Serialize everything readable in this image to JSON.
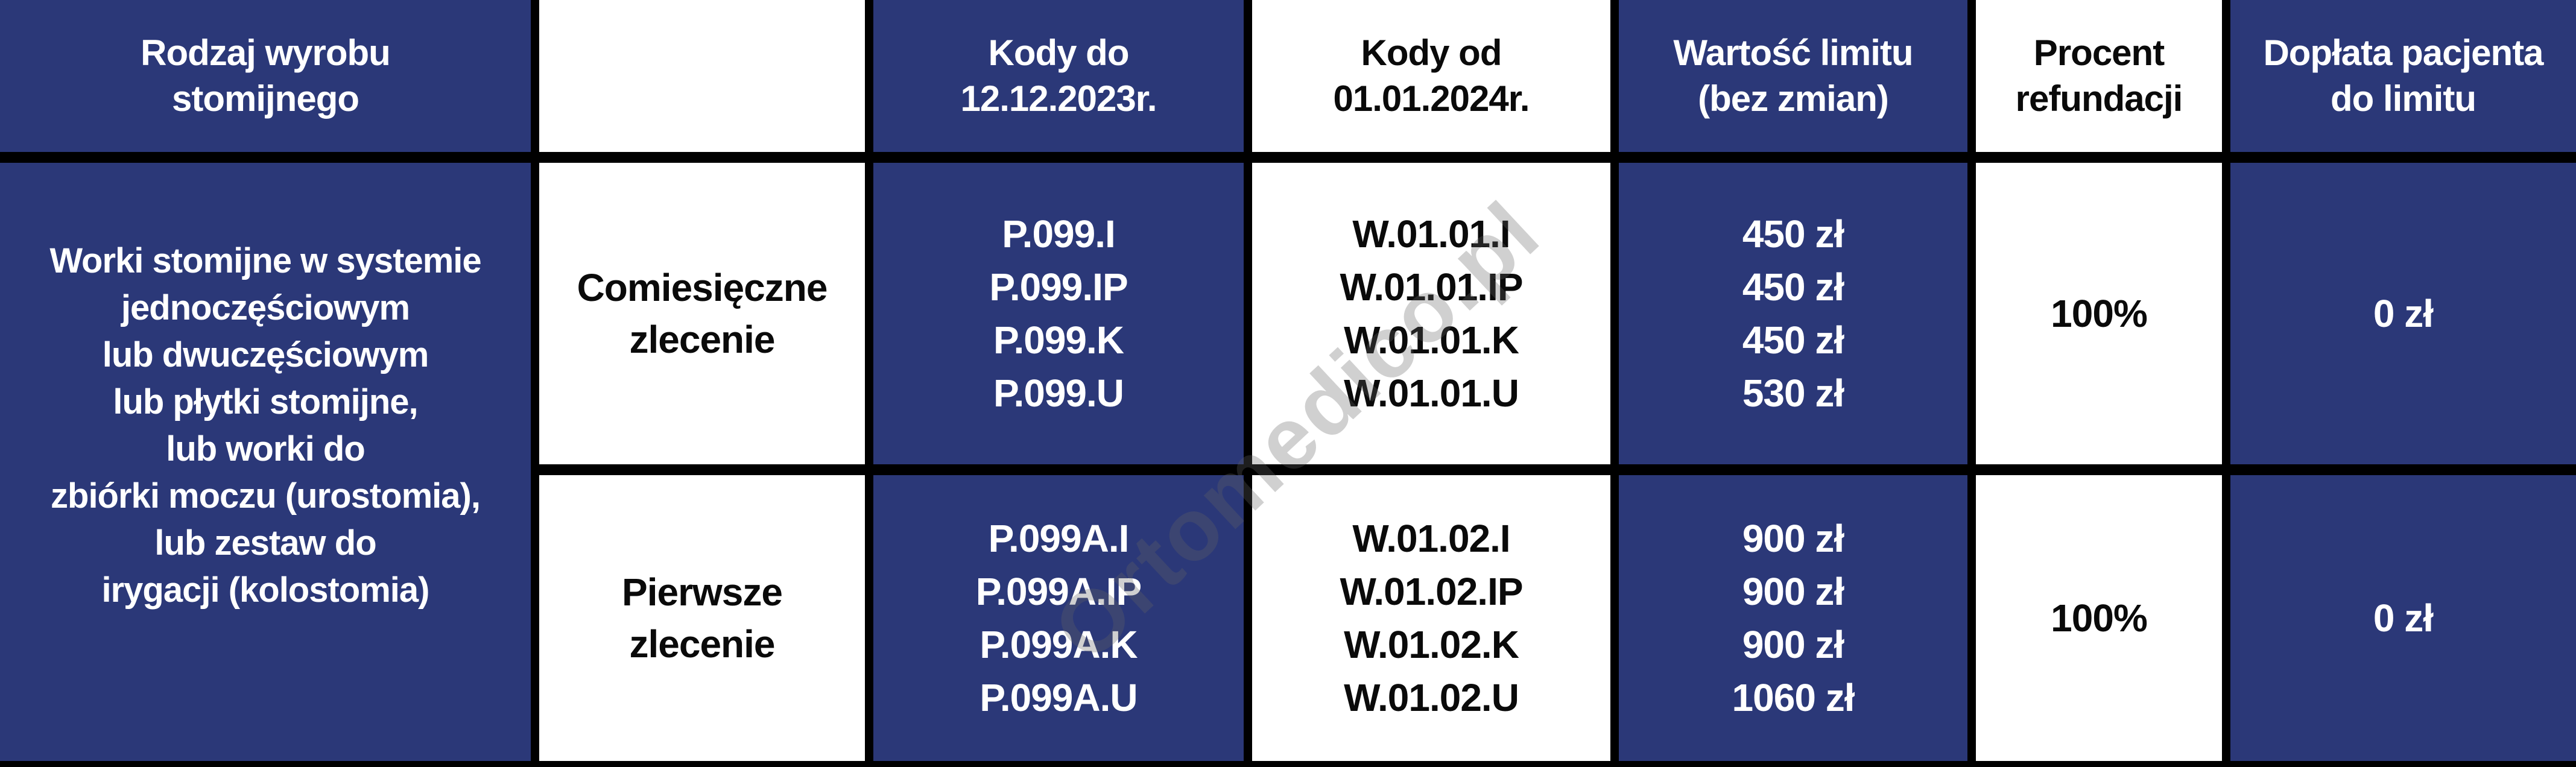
{
  "colors": {
    "navy": "#2b3878",
    "white": "#ffffff",
    "border": "#000000",
    "text_dark": "#0a0a0a",
    "text_light": "#ffffff",
    "watermark_gray": "#646464"
  },
  "watermark": {
    "text": "Ortomedico.pl"
  },
  "table": {
    "header": {
      "product_type": [
        "Rodzaj wyrobu",
        "stomijnego"
      ],
      "order_type": [],
      "codes_old": [
        "Kody do",
        "12.12.2023r."
      ],
      "codes_new": [
        "Kody od",
        "01.01.2024r."
      ],
      "limit_value": [
        "Wartość limitu",
        "(bez zmian)"
      ],
      "refund_percent": [
        "Procent",
        "refundacji"
      ],
      "patient_copay": [
        "Dopłata pacjenta",
        "do limitu"
      ]
    },
    "product_description": [
      "Worki stomijne w systemie",
      "jednoczęściowym",
      "lub dwuczęściowym",
      "lub płytki stomijne,",
      "lub worki do",
      "zbiórki moczu (urostomia),",
      "lub zestaw do",
      "irygacji (kolostomia)"
    ],
    "rows": [
      {
        "order_type": [
          "Comiesięczne",
          "zlecenie"
        ],
        "codes_old": [
          "P.099.I",
          "P.099.IP",
          "P.099.K",
          "P.099.U"
        ],
        "codes_new": [
          "W.01.01.I",
          "W.01.01.IP",
          "W.01.01.K",
          "W.01.01.U"
        ],
        "limit_values": [
          "450 zł",
          "450 zł",
          "450 zł",
          "530 zł"
        ],
        "refund_percent": "100%",
        "patient_copay": "0 zł"
      },
      {
        "order_type": [
          "Pierwsze",
          "zlecenie"
        ],
        "codes_old": [
          "P.099A.I",
          "P.099A.IP",
          "P.099A.K",
          "P.099A.U"
        ],
        "codes_new": [
          "W.01.02.I",
          "W.01.02.IP",
          "W.01.02.K",
          "W.01.02.U"
        ],
        "limit_values": [
          "900 zł",
          "900 zł",
          "900 zł",
          "1060 zł"
        ],
        "refund_percent": "100%",
        "patient_copay": "0 zł"
      }
    ]
  }
}
